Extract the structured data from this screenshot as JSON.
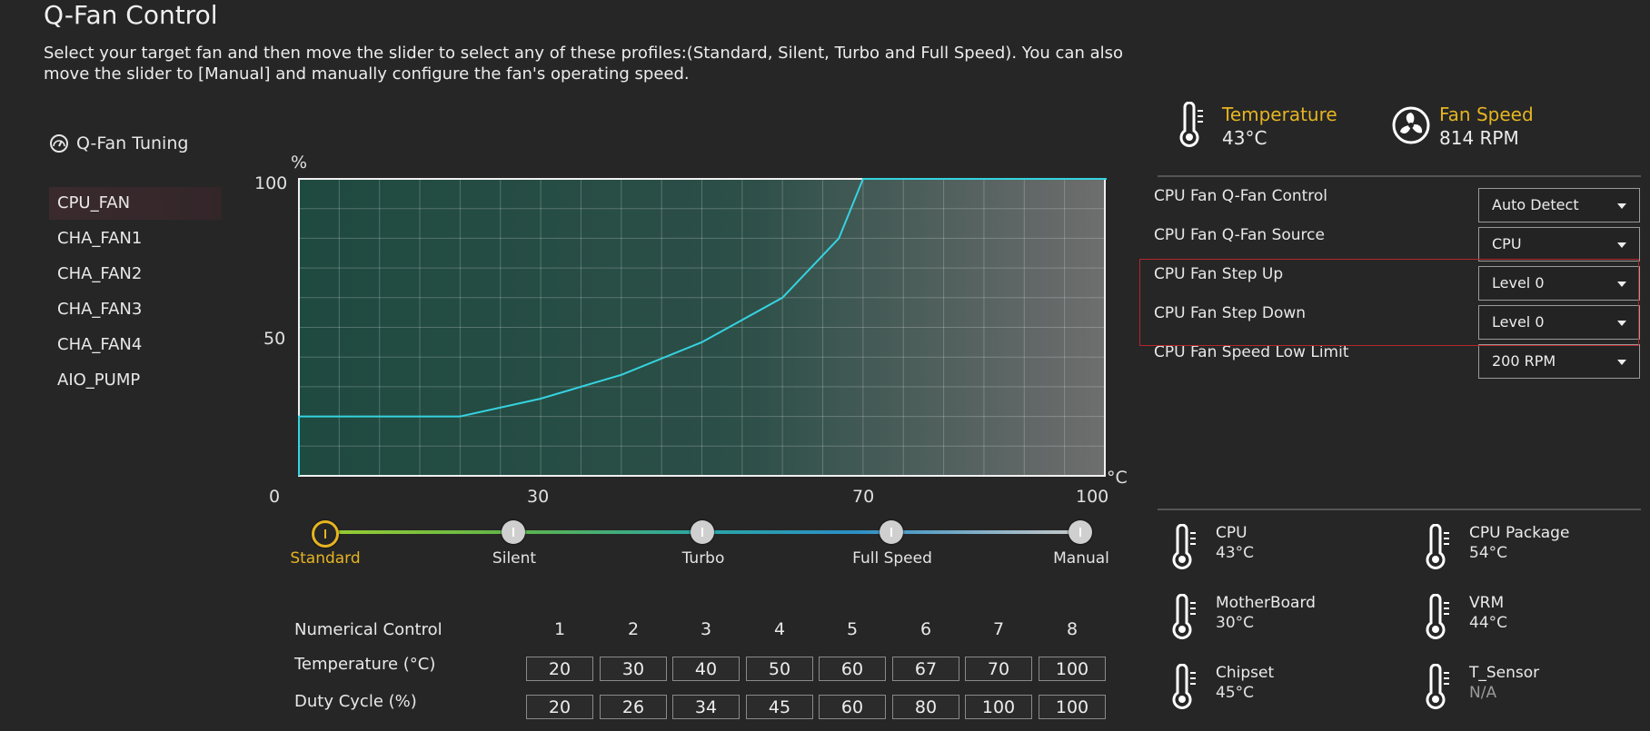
{
  "page": {
    "title": "Q-Fan Control",
    "description": "Select your target fan and then move the slider to select any of these profiles:(Standard, Silent, Turbo and Full Speed). You can also move the slider to [Manual] and manually configure the fan's operating speed."
  },
  "tuning": {
    "header": "Q-Fan Tuning",
    "fans": [
      "CPU_FAN",
      "CHA_FAN1",
      "CHA_FAN2",
      "CHA_FAN3",
      "CHA_FAN4",
      "AIO_PUMP"
    ],
    "selected": "CPU_FAN"
  },
  "chart_data": {
    "type": "line",
    "ylabel": "%",
    "xlabel": "°C",
    "xlim": [
      0,
      100
    ],
    "ylim": [
      0,
      100
    ],
    "x_ticks": [
      "0",
      "30",
      "70",
      "100"
    ],
    "y_ticks": [
      "100",
      "50"
    ],
    "grid": true,
    "series": [
      {
        "x": [
          0,
          20,
          30,
          40,
          50,
          60,
          67,
          70,
          100
        ],
        "y": [
          20,
          20,
          26,
          34,
          45,
          60,
          80,
          100,
          100
        ]
      }
    ]
  },
  "slider": {
    "profiles": [
      "Standard",
      "Silent",
      "Turbo",
      "Full Speed",
      "Manual"
    ],
    "active": "Standard"
  },
  "numerical": {
    "label": "Numerical Control",
    "temp_label": "Temperature (°C)",
    "duty_label": "Duty Cycle (%)",
    "points": [
      "1",
      "2",
      "3",
      "4",
      "5",
      "6",
      "7",
      "8"
    ],
    "temperatures": [
      "20",
      "30",
      "40",
      "50",
      "60",
      "67",
      "70",
      "100"
    ],
    "duty": [
      "20",
      "26",
      "34",
      "45",
      "60",
      "80",
      "100",
      "100"
    ]
  },
  "status": {
    "temperature_label": "Temperature",
    "temperature_value": "43°C",
    "fan_speed_label": "Fan Speed",
    "fan_speed_value": "814 RPM"
  },
  "settings": [
    {
      "label": "CPU Fan Q-Fan Control",
      "value": "Auto Detect"
    },
    {
      "label": "CPU Fan Q-Fan Source",
      "value": "CPU"
    },
    {
      "label": "CPU Fan Step Up",
      "value": "Level 0"
    },
    {
      "label": "CPU Fan Step Down",
      "value": "Level 0"
    },
    {
      "label": "CPU Fan Speed Low Limit",
      "value": "200 RPM"
    }
  ],
  "sensors": [
    {
      "name": "CPU",
      "value": "43°C"
    },
    {
      "name": "CPU Package",
      "value": "54°C"
    },
    {
      "name": "MotherBoard",
      "value": "30°C"
    },
    {
      "name": "VRM",
      "value": "44°C"
    },
    {
      "name": "Chipset",
      "value": "45°C"
    },
    {
      "name": "T_Sensor",
      "value": "N/A"
    }
  ],
  "colors": {
    "accent": "#e6b422",
    "curve": "#35d3e0",
    "highlight": "#b3262b"
  }
}
